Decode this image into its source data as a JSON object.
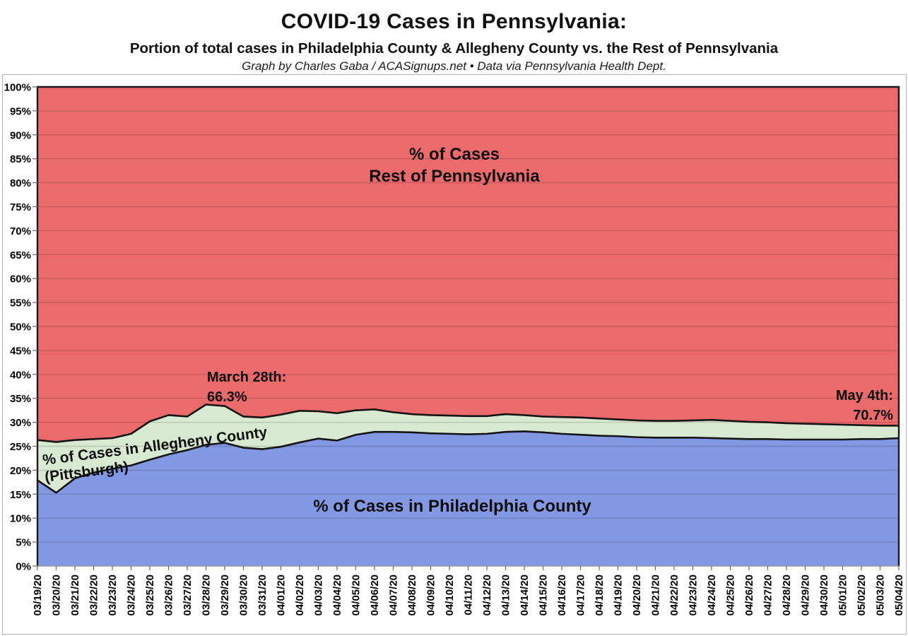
{
  "header": {
    "title": "COVID-19 Cases in Pennsylvania:",
    "subtitle": "Portion of total cases in Philadelphia County & Allegheny County vs. the Rest of Pennsylvania",
    "attribution": "Graph by Charles Gaba / ACASignups.net  •  Data via Pennsylvania Health Dept."
  },
  "chart_data": {
    "type": "area",
    "stacked": true,
    "unit": "%",
    "ylim": [
      0,
      100
    ],
    "ytick_step": 5,
    "gridlines": true,
    "legend": "none",
    "xtick_rotation": -90,
    "x": [
      "03/19/20",
      "03/20/20",
      "03/21/20",
      "03/22/20",
      "03/23/20",
      "03/24/20",
      "03/25/20",
      "03/26/20",
      "03/27/20",
      "03/28/20",
      "03/29/20",
      "03/30/20",
      "03/31/20",
      "04/01/20",
      "04/02/20",
      "04/03/20",
      "04/04/20",
      "04/05/20",
      "04/06/20",
      "04/07/20",
      "04/08/20",
      "04/09/20",
      "04/10/20",
      "04/11/20",
      "04/12/20",
      "04/13/20",
      "04/14/20",
      "04/15/20",
      "04/16/20",
      "04/17/20",
      "04/18/20",
      "04/19/20",
      "04/20/20",
      "04/21/20",
      "04/22/20",
      "04/23/20",
      "04/24/20",
      "04/25/20",
      "04/26/20",
      "04/27/20",
      "04/28/20",
      "04/29/20",
      "04/30/20",
      "05/01/20",
      "05/02/20",
      "05/03/20",
      "05/04/20"
    ],
    "series": [
      {
        "name": "% of Cases in Philadelphia County",
        "color": "#8398E2",
        "values": [
          17.9,
          15.3,
          18.3,
          19.5,
          20.3,
          21.0,
          22.2,
          23.3,
          24.2,
          25.3,
          25.7,
          24.7,
          24.4,
          24.9,
          25.8,
          26.6,
          26.2,
          27.4,
          28.0,
          28.0,
          27.9,
          27.7,
          27.6,
          27.5,
          27.6,
          28.0,
          28.1,
          27.9,
          27.6,
          27.4,
          27.2,
          27.1,
          26.9,
          26.8,
          26.8,
          26.8,
          26.7,
          26.6,
          26.5,
          26.5,
          26.4,
          26.4,
          26.4,
          26.4,
          26.5,
          26.5,
          26.7
        ]
      },
      {
        "name": "% of Cases in Allegheny County (Pittsburgh)",
        "color": "#D8E9D1",
        "values": [
          8.4,
          10.6,
          8.0,
          7.0,
          6.4,
          6.6,
          8.0,
          8.2,
          7.0,
          8.4,
          7.7,
          6.5,
          6.6,
          6.7,
          6.6,
          5.7,
          5.7,
          5.1,
          4.7,
          4.1,
          3.8,
          3.8,
          3.8,
          3.8,
          3.7,
          3.7,
          3.4,
          3.3,
          3.5,
          3.6,
          3.6,
          3.5,
          3.5,
          3.5,
          3.5,
          3.6,
          3.8,
          3.7,
          3.6,
          3.5,
          3.4,
          3.3,
          3.2,
          3.1,
          2.9,
          2.8,
          2.6
        ]
      },
      {
        "name": "% of Cases Rest of Pennsylvania",
        "color": "#EB6A6C",
        "values": [
          73.7,
          74.1,
          73.7,
          73.5,
          73.3,
          72.4,
          69.8,
          68.5,
          68.8,
          66.3,
          66.6,
          68.8,
          69.0,
          68.4,
          67.6,
          67.7,
          68.1,
          67.5,
          67.3,
          67.9,
          68.3,
          68.5,
          68.6,
          68.7,
          68.7,
          68.3,
          68.5,
          68.8,
          68.9,
          69.0,
          69.2,
          69.4,
          69.6,
          69.7,
          69.7,
          69.6,
          69.5,
          69.7,
          69.9,
          70.0,
          70.2,
          70.3,
          70.4,
          70.5,
          70.6,
          70.7,
          70.7
        ]
      }
    ],
    "series_labels": {
      "rest_line1": "% of Cases",
      "rest_line2": "Rest of Pennsylvania",
      "allegheny": "% of Cases in Allegheny County (Pittsburgh)",
      "philadelphia": "% of Cases in Philadelphia County"
    },
    "annotations": [
      {
        "date": "03/28/20",
        "line1": "March 28th:",
        "line2": "66.3%"
      },
      {
        "date": "05/04/20",
        "line1": "May 4th:",
        "line2": "70.7%"
      }
    ],
    "colors": {
      "boundary_line": "#141414",
      "gridline": "rgba(0,0,0,0.15)",
      "axis": "#666666"
    }
  }
}
